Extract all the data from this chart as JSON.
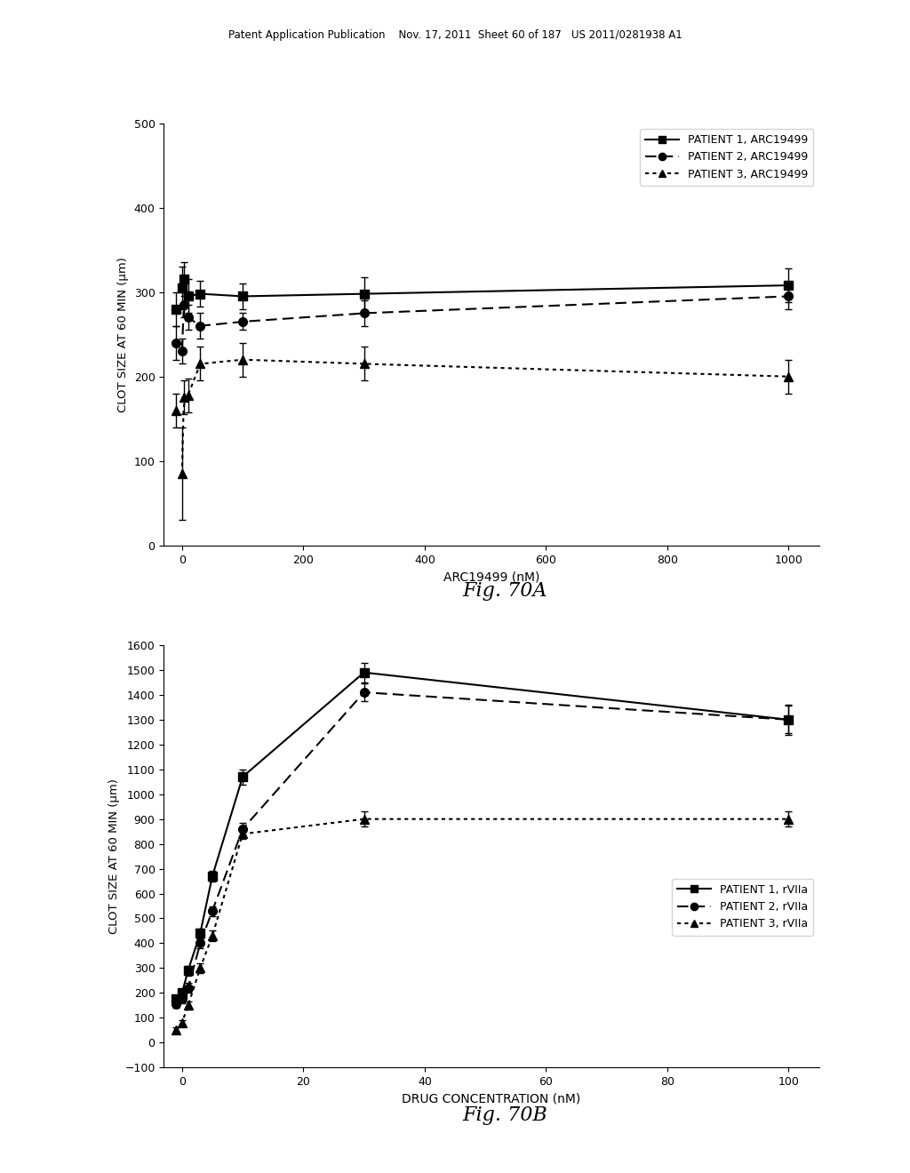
{
  "header_text": "Patent Application Publication    Nov. 17, 2011  Sheet 60 of 187   US 2011/0281938 A1",
  "fig70A": {
    "title": "Fig. 70A",
    "xlabel": "ARC19499 (nM)",
    "ylabel": "CLOT SIZE AT 60 MIN (μm)",
    "xlim": [
      -30,
      1050
    ],
    "ylim": [
      0,
      500
    ],
    "xticks": [
      0,
      200,
      400,
      600,
      800,
      1000
    ],
    "yticks": [
      0,
      100,
      200,
      300,
      400,
      500
    ],
    "series": [
      {
        "label": "PATIENT 1, ARC19499",
        "linestyle": "solid",
        "marker": "s",
        "x": [
          0,
          3,
          10,
          30,
          100,
          300,
          1000
        ],
        "y": [
          305,
          315,
          295,
          298,
          295,
          298,
          308
        ],
        "x_extra": [
          -10
        ],
        "y_extra": [
          280
        ],
        "yerr": [
          25,
          20,
          20,
          15,
          15,
          20,
          20
        ],
        "yerr_extra": [
          20
        ]
      },
      {
        "label": "PATIENT 2, ARC19499",
        "linestyle": "dashed",
        "marker": "o",
        "x": [
          0,
          3,
          10,
          30,
          100,
          300,
          1000
        ],
        "y": [
          230,
          285,
          270,
          260,
          265,
          275,
          295
        ],
        "x_extra": [
          -10
        ],
        "y_extra": [
          240
        ],
        "yerr": [
          15,
          15,
          15,
          15,
          10,
          15,
          15
        ],
        "yerr_extra": [
          20
        ]
      },
      {
        "label": "PATIENT 3, ARC19499",
        "linestyle": "dotted",
        "marker": "^",
        "x": [
          0,
          3,
          10,
          30,
          100,
          300,
          1000
        ],
        "y": [
          85,
          175,
          178,
          215,
          220,
          215,
          200
        ],
        "x_extra": [
          -10
        ],
        "y_extra": [
          160
        ],
        "yerr": [
          55,
          20,
          20,
          20,
          20,
          20,
          20
        ],
        "yerr_extra": [
          20
        ]
      }
    ]
  },
  "fig70B": {
    "title": "Fig. 70B",
    "xlabel": "DRUG CONCENTRATION (nM)",
    "ylabel": "CLOT SIZE AT 60 MIN (μm)",
    "xlim": [
      -3,
      105
    ],
    "ylim": [
      -100,
      1600
    ],
    "xticks": [
      0,
      20,
      40,
      60,
      80,
      100
    ],
    "yticks": [
      -100,
      0,
      100,
      200,
      300,
      400,
      500,
      600,
      700,
      800,
      900,
      1000,
      1100,
      1200,
      1300,
      1400,
      1500,
      1600
    ],
    "series": [
      {
        "label": "PATIENT 1, rVIIa",
        "linestyle": "solid",
        "marker": "s",
        "x": [
          -1,
          0,
          1,
          3,
          5,
          10,
          30,
          100
        ],
        "y": [
          175,
          200,
          290,
          440,
          670,
          1070,
          1490,
          1300
        ],
        "yerr": [
          15,
          15,
          20,
          20,
          20,
          30,
          40,
          60
        ]
      },
      {
        "label": "PATIENT 2, rVIIa",
        "linestyle": "dashed",
        "marker": "o",
        "x": [
          -1,
          0,
          1,
          3,
          5,
          10,
          30,
          100
        ],
        "y": [
          155,
          175,
          220,
          400,
          530,
          860,
          1410,
          1300
        ],
        "yerr": [
          15,
          15,
          20,
          20,
          20,
          25,
          35,
          55
        ]
      },
      {
        "label": "PATIENT 3, rVIIa",
        "linestyle": "dotted",
        "marker": "^",
        "x": [
          -1,
          0,
          1,
          3,
          5,
          10,
          30,
          100
        ],
        "y": [
          50,
          80,
          150,
          300,
          430,
          840,
          900,
          900
        ],
        "yerr": [
          10,
          10,
          15,
          20,
          20,
          20,
          30,
          30
        ]
      }
    ]
  },
  "background_color": "white",
  "text_color": "black"
}
